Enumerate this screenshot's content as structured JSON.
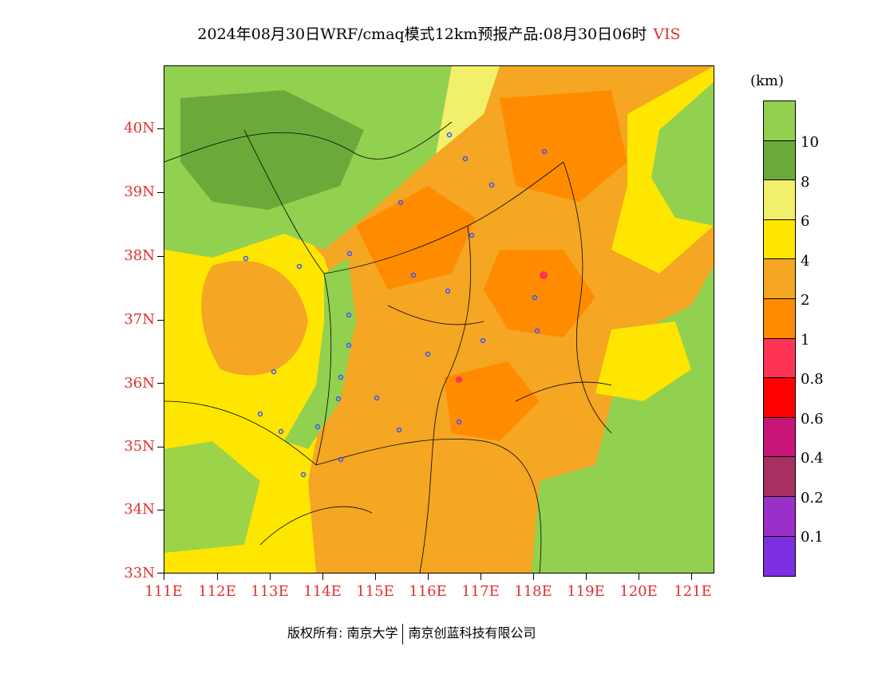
{
  "title": {
    "main": "2024年08月30日WRF/cmaq模式12km预报产品:08月30日06时",
    "variable": "VIS"
  },
  "axes": {
    "y_labels": [
      "40N",
      "39N",
      "38N",
      "37N",
      "36N",
      "35N",
      "34N",
      "33N"
    ],
    "x_labels": [
      "111E",
      "112E",
      "113E",
      "114E",
      "115E",
      "116E",
      "117E",
      "118E",
      "119E",
      "120E",
      "121E"
    ]
  },
  "legend": {
    "unit": "(km)",
    "colors": [
      "#92d050",
      "#6aaa3a",
      "#f2f06a",
      "#ffe600",
      "#f5a623",
      "#ff8c00",
      "#ff3355",
      "#ff0000",
      "#c8157a",
      "#a83060",
      "#9b30c8",
      "#7b2fe0"
    ],
    "labels": [
      "10",
      "8",
      "6",
      "4",
      "2",
      "1",
      "0.8",
      "0.6",
      "0.4",
      "0.2",
      "0.1"
    ]
  },
  "footer": {
    "left": "版权所有: 南京大学",
    "right": "南京创蓝科技有限公司"
  }
}
